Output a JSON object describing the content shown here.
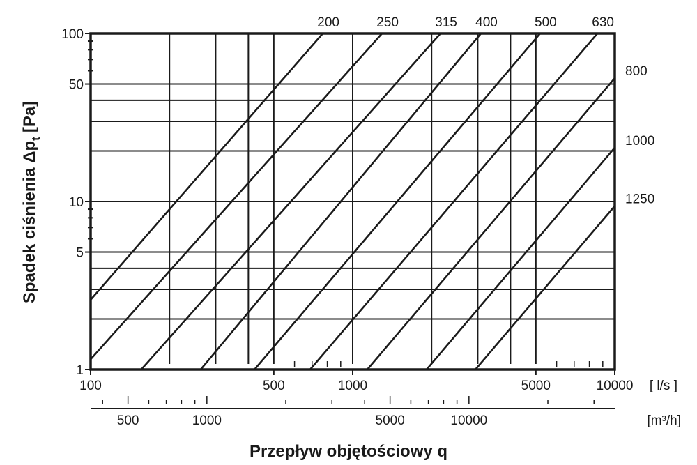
{
  "chart_data": {
    "type": "line",
    "title": "",
    "xlabel": "Przepływ objętościowy q",
    "ylabel_main": "Spadek ciśnienia Δp",
    "ylabel_sub": "t",
    "ylabel_unit": "[Pa]",
    "x_scale": "log",
    "y_scale": "log",
    "xlim": [
      100,
      10000
    ],
    "ylim": [
      1,
      100
    ],
    "x_unit": "[ l/s ]",
    "x2_unit": "[m³/h]",
    "x2_factor": 3.6,
    "x_ticks": [
      {
        "v": 100,
        "label": "100"
      },
      {
        "v": 500,
        "label": "500"
      },
      {
        "v": 1000,
        "label": "1000"
      },
      {
        "v": 5000,
        "label": "5000"
      },
      {
        "v": 10000,
        "label": "10000"
      }
    ],
    "x2_ticks": [
      {
        "v": 500,
        "label": "500"
      },
      {
        "v": 1000,
        "label": "1000"
      },
      {
        "v": 5000,
        "label": "5000"
      },
      {
        "v": 10000,
        "label": "10000"
      }
    ],
    "y_ticks": [
      {
        "v": 1,
        "label": "1"
      },
      {
        "v": 5,
        "label": "5"
      },
      {
        "v": 10,
        "label": "10"
      },
      {
        "v": 50,
        "label": "50"
      },
      {
        "v": 100,
        "label": "100"
      }
    ],
    "x_grid": [
      200,
      300,
      400,
      500,
      1000,
      2000,
      3000,
      4000,
      5000
    ],
    "y_grid": [
      2,
      3,
      4,
      5,
      10,
      20,
      30,
      40,
      50
    ],
    "grid": true,
    "series": [
      {
        "name": "200",
        "points": [
          [
            100,
            2.6
          ],
          [
            769,
            100
          ]
        ]
      },
      {
        "name": "250",
        "points": [
          [
            100,
            1.15
          ],
          [
            1294,
            100
          ]
        ]
      },
      {
        "name": "315",
        "points": [
          [
            156,
            1
          ],
          [
            2163,
            100
          ]
        ]
      },
      {
        "name": "400",
        "points": [
          [
            263,
            1
          ],
          [
            3086,
            100
          ]
        ]
      },
      {
        "name": "500",
        "points": [
          [
            422,
            1
          ],
          [
            5190,
            100
          ]
        ]
      },
      {
        "name": "630",
        "points": [
          [
            688,
            1
          ],
          [
            8586,
            100
          ]
        ]
      },
      {
        "name": "800",
        "points": [
          [
            1137,
            1
          ],
          [
            10000,
            54.2
          ]
        ]
      },
      {
        "name": "1000",
        "points": [
          [
            1914,
            1
          ],
          [
            10000,
            20.9
          ]
        ]
      },
      {
        "name": "1250",
        "points": [
          [
            2939,
            1
          ],
          [
            10000,
            9.4
          ]
        ]
      }
    ]
  }
}
